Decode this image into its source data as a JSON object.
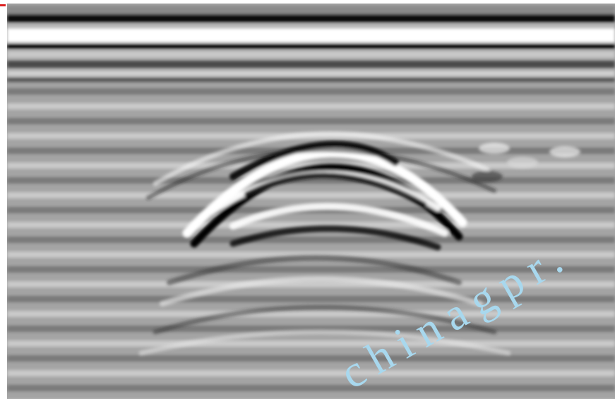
{
  "watermark": "chinagpr."
}
